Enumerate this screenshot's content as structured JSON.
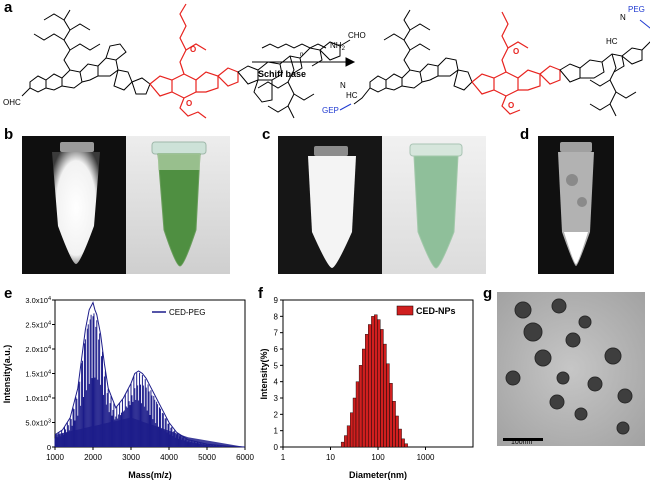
{
  "panel_letters": {
    "a": "a",
    "b": "b",
    "c": "c",
    "d": "d",
    "e": "e",
    "f": "f",
    "g": "g"
  },
  "scheme": {
    "left_cho": "CHO",
    "left_ohc": "OHC",
    "arrow_label": "Schiff base",
    "reagent_subscript": "n",
    "reagent_nh2": "NH",
    "reagent_nh2_sub": "2",
    "right_peg": "PEG",
    "right_gep": "GEP",
    "imine_hc": "HC",
    "imine_n": "N",
    "colors": {
      "core": "#e8231f",
      "peg": "#1f3ad1",
      "frame": "#000000"
    }
  },
  "photos": {
    "colors": {
      "fluorescence": "#ffffff",
      "tube_green": "#4a8a3a",
      "background": "#1a1a1a"
    }
  },
  "chart_data": [
    {
      "type": "line",
      "panel": "e",
      "legend": [
        "CED-PEG"
      ],
      "xlabel": "Mass(m/z)",
      "ylabel": "Intensity(a.u.)",
      "xlim": [
        1000,
        6000
      ],
      "ylim": [
        0,
        30000
      ],
      "xticks": [
        "1000",
        "2000",
        "3000",
        "4000",
        "5000",
        "6000"
      ],
      "yticks": [
        "0",
        "5.0x10",
        "1.0x10",
        "1.5x10",
        "2.0x10",
        "2.5x10",
        "3.0x10"
      ],
      "ytick_exponent": "3",
      "ytick_exponent_high": "4",
      "series": [
        {
          "name": "CED-PEG",
          "color": "#1c1c8a",
          "x": [
            1000,
            1200,
            1400,
            1600,
            1700,
            1800,
            1900,
            2000,
            2050,
            2100,
            2200,
            2300,
            2400,
            2600,
            2800,
            3000,
            3100,
            3200,
            3300,
            3400,
            3500,
            3600,
            3800,
            4000,
            4200,
            4500,
            5000,
            5500,
            6000
          ],
          "y": [
            2500,
            3500,
            6000,
            12000,
            18000,
            24000,
            28000,
            29500,
            28000,
            27000,
            23000,
            17000,
            12000,
            8000,
            10000,
            13000,
            15000,
            15500,
            15000,
            14000,
            12500,
            11000,
            8000,
            5000,
            3000,
            1500,
            600,
            200,
            0
          ]
        }
      ]
    },
    {
      "type": "bar",
      "panel": "f",
      "legend": [
        "CED-NPs"
      ],
      "xlabel": "Diameter(nm)",
      "ylabel": "Intensity(%)",
      "xscale": "log",
      "xlim": [
        1,
        10000
      ],
      "ylim": [
        0,
        9
      ],
      "xticks": [
        "1",
        "10",
        "100",
        "1000"
      ],
      "yticks": [
        "0",
        "1",
        "2",
        "3",
        "4",
        "5",
        "6",
        "7",
        "8",
        "9"
      ],
      "color": "#d01f1f",
      "x": [
        18,
        21,
        24,
        28,
        32,
        37,
        43,
        50,
        58,
        67,
        78,
        90,
        104,
        121,
        140,
        162,
        188,
        218,
        252,
        292,
        338,
        392
      ],
      "values": [
        0.3,
        0.7,
        1.3,
        2.1,
        3.0,
        4.0,
        5.0,
        6.0,
        6.9,
        7.5,
        8.0,
        8.1,
        7.8,
        7.2,
        6.3,
        5.1,
        3.9,
        2.8,
        1.9,
        1.1,
        0.5,
        0.2
      ]
    }
  ],
  "tem": {
    "scalebar_label": "100nm"
  }
}
